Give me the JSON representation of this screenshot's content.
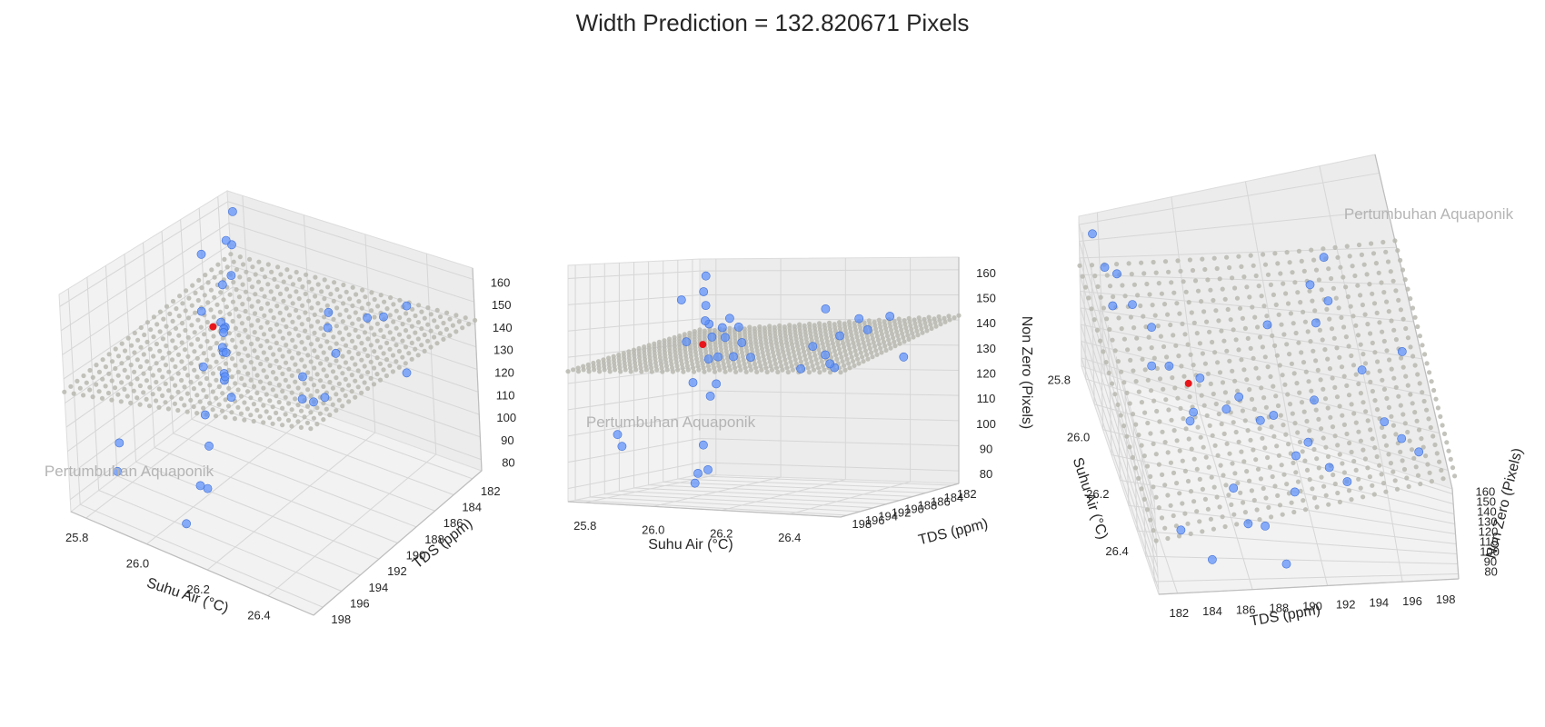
{
  "title": "Width Prediction = 132.820671 Pixels",
  "watermark": "Pertumbuhan Aquaponik",
  "colors": {
    "points": "#5b8ff9",
    "prediction": "#e8161b",
    "surface": "#b9b9b0",
    "pane": "#f2f2f2",
    "grid": "#d6d6d6"
  },
  "chart_data": {
    "type": "scatter",
    "subtype": "3d-scatter-with-regression-plane",
    "axes": {
      "x": {
        "label": "Suhu Air (°C)",
        "range": [
          25.75,
          26.55
        ],
        "ticks": [
          25.8,
          26.0,
          26.2,
          26.4
        ]
      },
      "y": {
        "label": "TDS (ppm)",
        "range": [
          181,
          199
        ],
        "ticks": [
          182,
          184,
          186,
          188,
          190,
          192,
          194,
          196,
          198
        ]
      },
      "z": {
        "label": "Non Zero (Pixels)",
        "range": [
          75,
          165
        ],
        "ticks": [
          80,
          90,
          100,
          110,
          120,
          130,
          140,
          150,
          160
        ]
      }
    },
    "views": [
      {
        "name": "view-left"
      },
      {
        "name": "view-center"
      },
      {
        "name": "view-right"
      }
    ],
    "plane": {
      "intercept": 132.8,
      "slope_x": 8,
      "slope_y": -0.6,
      "grid": 26
    },
    "prediction": {
      "x": 25.94,
      "y": 189.2,
      "z": 132.820671
    },
    "points": [
      {
        "x": 25.78,
        "y": 181.5,
        "z": 158
      },
      {
        "x": 25.8,
        "y": 182.4,
        "z": 146
      },
      {
        "x": 25.82,
        "y": 183.6,
        "z": 152
      },
      {
        "x": 25.85,
        "y": 184.2,
        "z": 139
      },
      {
        "x": 25.79,
        "y": 185.3,
        "z": 149
      },
      {
        "x": 25.88,
        "y": 186.1,
        "z": 141
      },
      {
        "x": 25.91,
        "y": 187.0,
        "z": 126
      },
      {
        "x": 25.86,
        "y": 187.8,
        "z": 133
      },
      {
        "x": 25.95,
        "y": 188.6,
        "z": 112
      },
      {
        "x": 25.97,
        "y": 189.3,
        "z": 136
      },
      {
        "x": 25.93,
        "y": 190.1,
        "z": 118
      },
      {
        "x": 26.02,
        "y": 190.8,
        "z": 129
      },
      {
        "x": 26.05,
        "y": 191.6,
        "z": 141
      },
      {
        "x": 26.01,
        "y": 192.4,
        "z": 95
      },
      {
        "x": 26.09,
        "y": 193.1,
        "z": 138
      },
      {
        "x": 26.12,
        "y": 193.9,
        "z": 146
      },
      {
        "x": 26.07,
        "y": 194.6,
        "z": 87
      },
      {
        "x": 26.16,
        "y": 195.3,
        "z": 132
      },
      {
        "x": 26.19,
        "y": 196.0,
        "z": 144
      },
      {
        "x": 26.14,
        "y": 196.8,
        "z": 122
      },
      {
        "x": 26.23,
        "y": 197.5,
        "z": 139
      },
      {
        "x": 26.27,
        "y": 198.2,
        "z": 134
      },
      {
        "x": 26.31,
        "y": 183.0,
        "z": 137
      },
      {
        "x": 26.34,
        "y": 185.7,
        "z": 143
      },
      {
        "x": 26.29,
        "y": 188.2,
        "z": 148
      },
      {
        "x": 26.38,
        "y": 190.5,
        "z": 139
      },
      {
        "x": 26.41,
        "y": 192.8,
        "z": 128
      },
      {
        "x": 26.44,
        "y": 195.0,
        "z": 131
      },
      {
        "x": 26.47,
        "y": 197.2,
        "z": 136
      },
      {
        "x": 26.5,
        "y": 186.9,
        "z": 129
      },
      {
        "x": 26.36,
        "y": 182.1,
        "z": 142
      },
      {
        "x": 26.25,
        "y": 189.9,
        "z": 125
      },
      {
        "x": 26.18,
        "y": 184.8,
        "z": 131
      },
      {
        "x": 26.1,
        "y": 197.9,
        "z": 84
      },
      {
        "x": 26.03,
        "y": 194.1,
        "z": 85
      },
      {
        "x": 25.84,
        "y": 196.4,
        "z": 100
      },
      {
        "x": 25.9,
        "y": 198.6,
        "z": 97
      }
    ]
  }
}
